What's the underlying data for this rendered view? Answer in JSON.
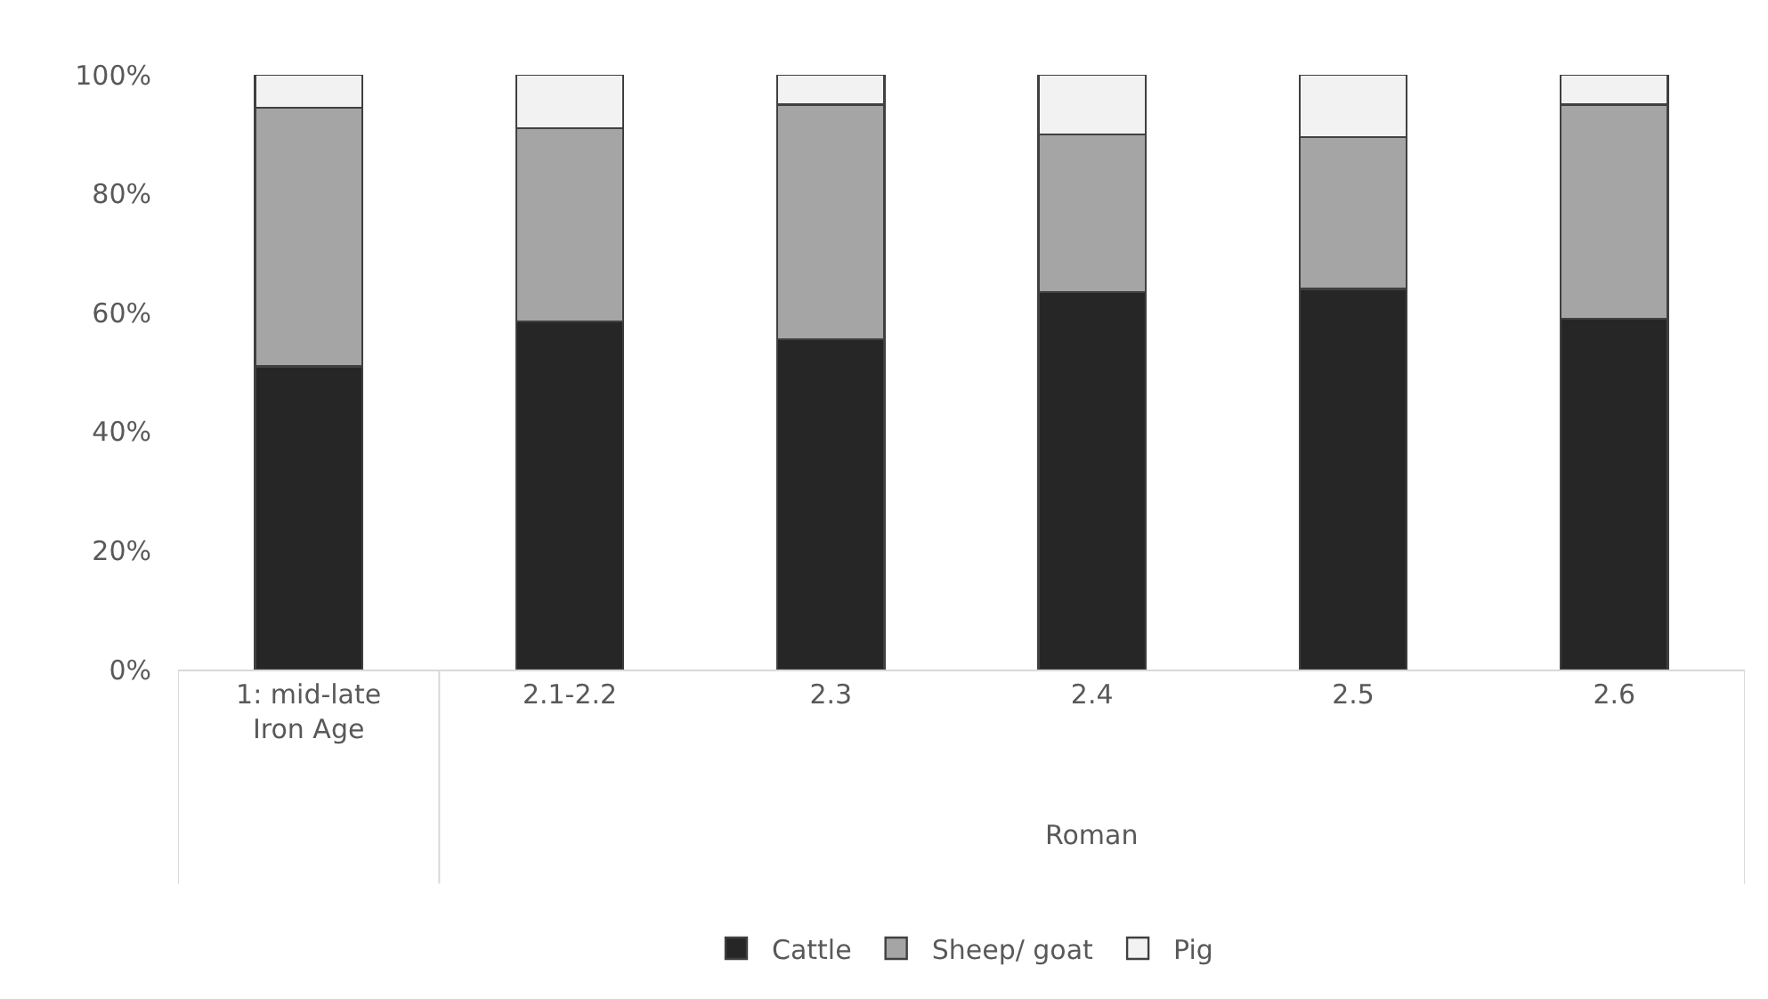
{
  "chart_data": {
    "type": "bar",
    "stacked": true,
    "categories": [
      "1: mid-late Iron Age",
      "2.1-2.2",
      "2.3",
      "2.4",
      "2.5",
      "2.6"
    ],
    "series": [
      {
        "name": "Cattle",
        "color": "#262626",
        "values": [
          51,
          58.5,
          55.5,
          63.5,
          64,
          59
        ]
      },
      {
        "name": "Sheep/ goat",
        "color": "#a5a5a5",
        "values": [
          43.5,
          32.5,
          39.5,
          26.5,
          25.5,
          36
        ]
      },
      {
        "name": "Pig",
        "color": "#f2f2f2",
        "values": [
          5.5,
          9,
          5,
          10,
          10.5,
          5
        ]
      }
    ],
    "annotations": [
      "Roman"
    ],
    "ylim": [
      0,
      100
    ],
    "yticks": [
      {
        "value": 0,
        "label": "0%"
      },
      {
        "value": 20,
        "label": "20%"
      },
      {
        "value": 40,
        "label": "40%"
      },
      {
        "value": 60,
        "label": "60%"
      },
      {
        "value": 80,
        "label": "80%"
      },
      {
        "value": 100,
        "label": "100%"
      }
    ],
    "legend": "bottom"
  }
}
